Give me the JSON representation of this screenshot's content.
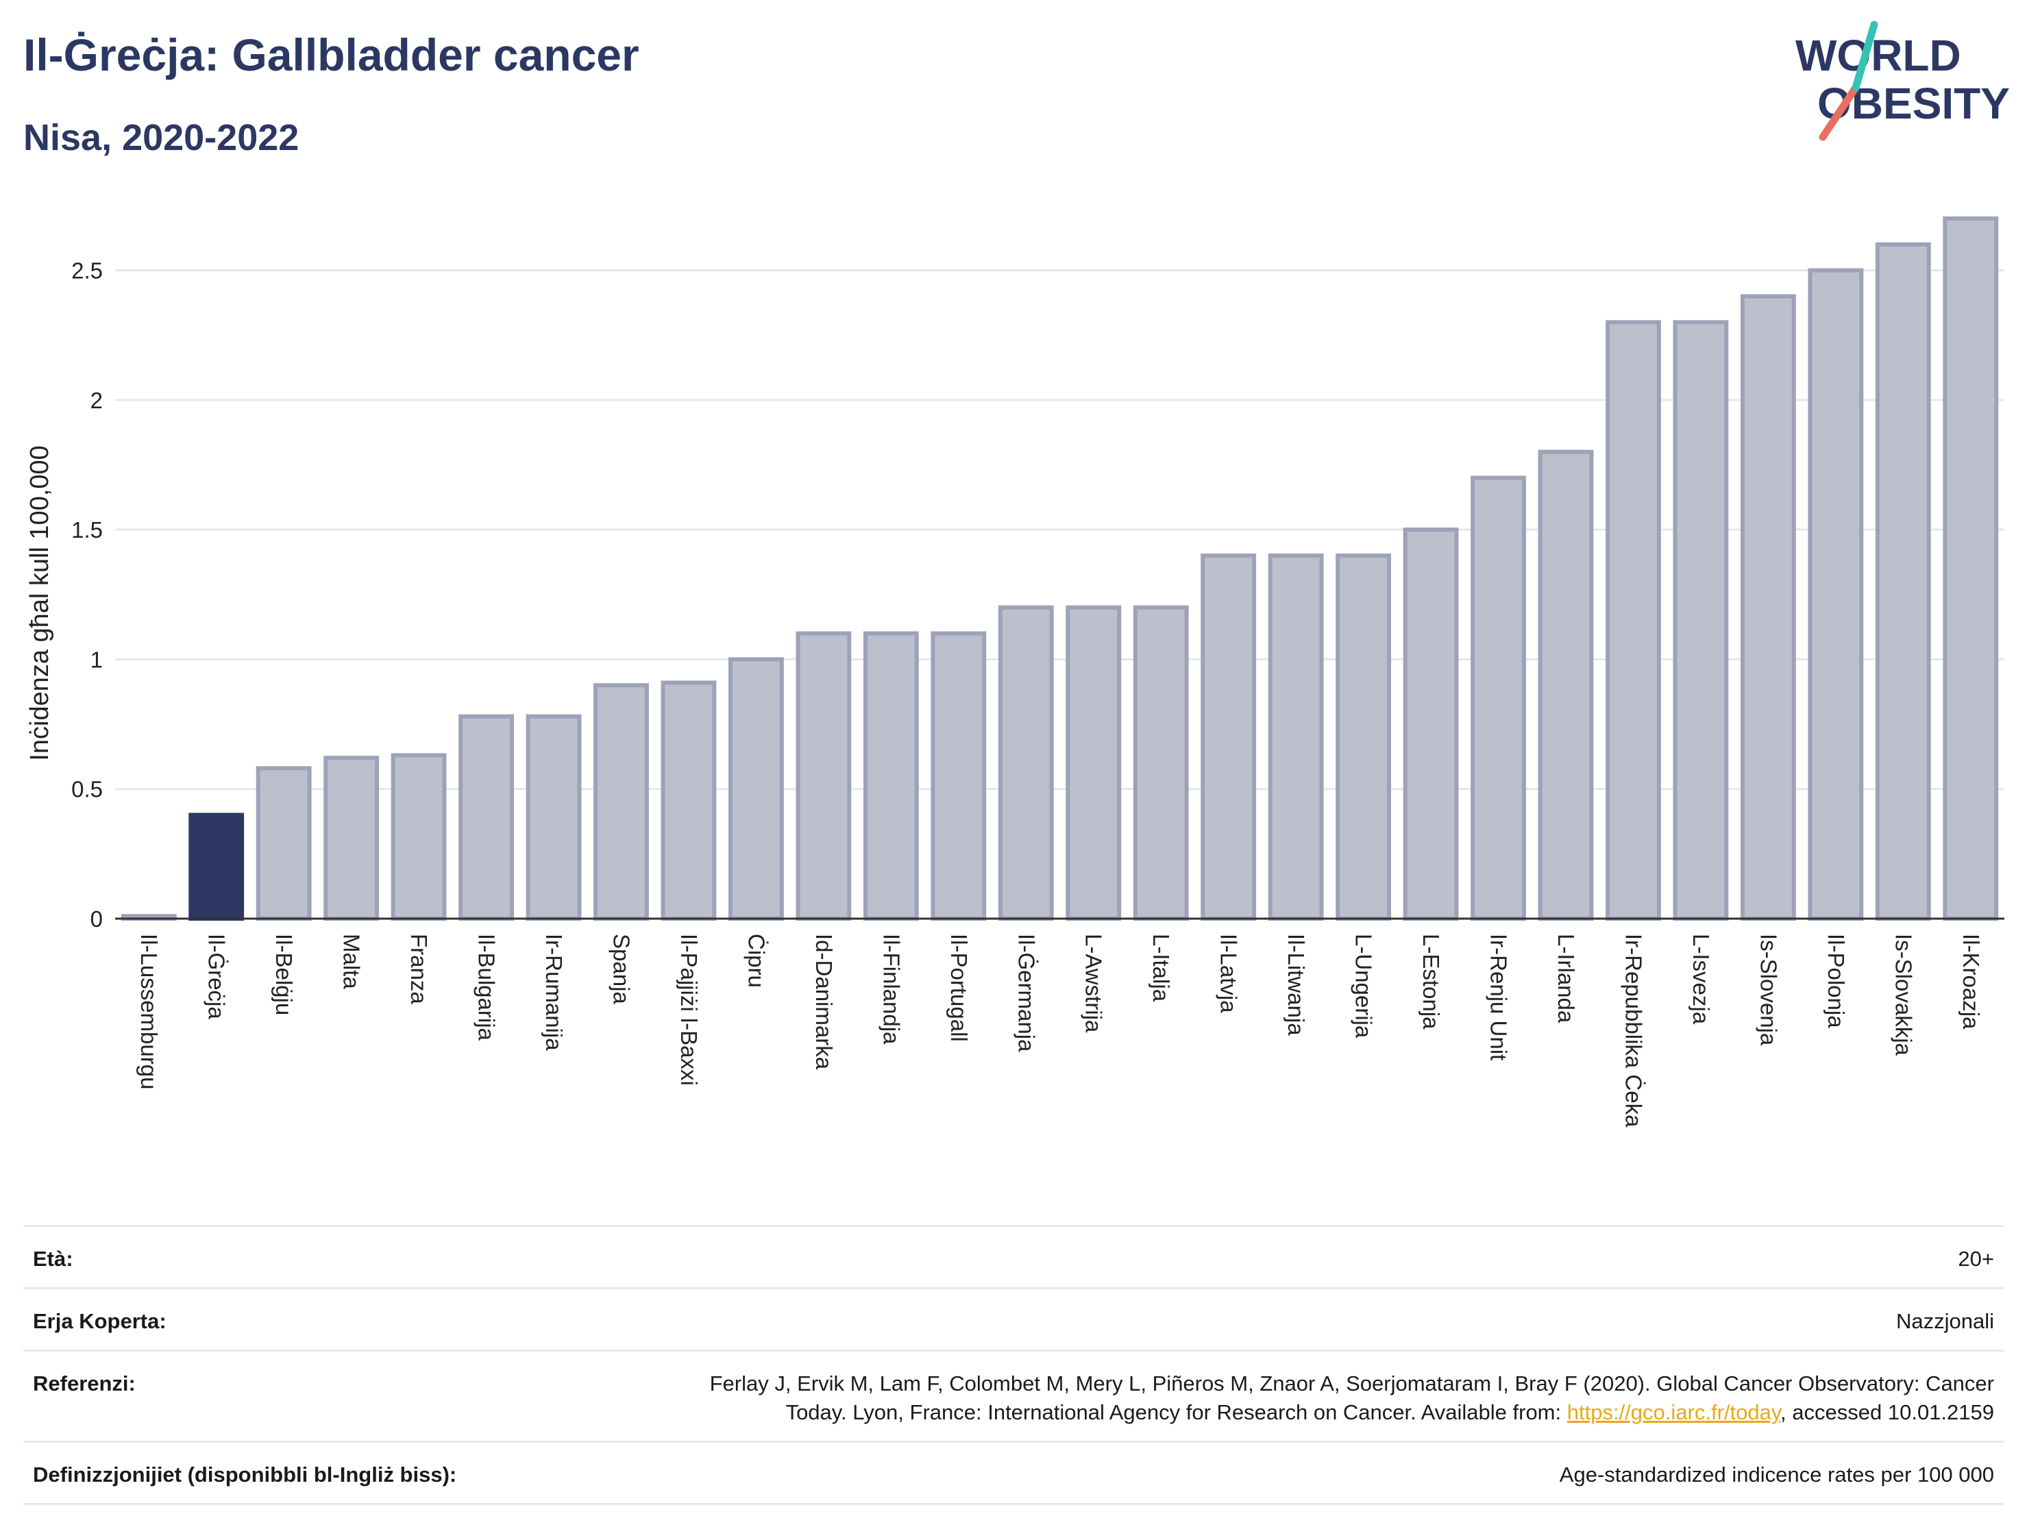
{
  "title": "Il-Ġreċja: Gallbladder cancer",
  "subtitle": "Nisa, 2020-2022",
  "logo": {
    "line1": "WORLD",
    "line2": "OBESITY",
    "colors": [
      "#2c3863",
      "#e86f5f",
      "#36c2b4"
    ]
  },
  "chart_data": {
    "type": "bar",
    "ylabel": "Inċidenza għal kull 100,000",
    "ylim": [
      0,
      2.75
    ],
    "yticks": [
      0,
      0.5,
      1,
      1.5,
      2,
      2.5
    ],
    "ytick_labels": [
      "0",
      "0.5",
      "1",
      "1.5",
      "2",
      "2.5"
    ],
    "grid": true,
    "highlight_category": "Il-Ġreċja",
    "colors": {
      "bar": "#bcbfcc",
      "bar_edge": "#9da2b8",
      "highlight": "#2c3863"
    },
    "categories": [
      "Il-Lussemburgu",
      "Il-Ġreċja",
      "Il-Belġju",
      "Malta",
      "Franza",
      "Il-Bulgarija",
      "Ir-Rumanija",
      "Spanja",
      "Il-Pajjiżi l-Baxxi",
      "Ċipru",
      "Id-Danimarka",
      "Il-Finlandja",
      "Il-Portugall",
      "Il-Ġermanja",
      "L-Awstrija",
      "L-Italja",
      "Il-Latvja",
      "Il-Litwanja",
      "L-Ungerija",
      "L-Estonja",
      "Ir-Renju Unit",
      "L-Irlanda",
      "Ir-Repubblika Ċeka",
      "L-Isvezja",
      "Is-Slovenja",
      "Il-Polonja",
      "Is-Slovakkja",
      "Il-Kroazja"
    ],
    "values": [
      0.01,
      0.4,
      0.58,
      0.62,
      0.63,
      0.78,
      0.78,
      0.9,
      0.91,
      1.0,
      1.1,
      1.1,
      1.1,
      1.2,
      1.2,
      1.2,
      1.4,
      1.4,
      1.4,
      1.5,
      1.7,
      1.8,
      2.3,
      2.3,
      2.4,
      2.5,
      2.6,
      2.7
    ]
  },
  "info": {
    "age_label": "Età:",
    "age_value": "20+",
    "area_label": "Erja Koperta:",
    "area_value": "Nazzjonali",
    "ref_label": "Referenzi:",
    "ref_text_1": "Ferlay J, Ervik M, Lam F, Colombet M, Mery L, Piñeros M, Znaor A, Soerjomataram I, Bray F (2020). Global Cancer Observatory: Cancer",
    "ref_text_2": "Today. Lyon, France: International Agency for Research on Cancer. Available from: ",
    "ref_link": "https://gco.iarc.fr/today",
    "ref_text_3": ", accessed 10.01.2159",
    "def_label": "Definizzjonijiet (disponibbli bl-Ingliż biss):",
    "def_value": "Age-standardized indicence rates per 100 000"
  }
}
